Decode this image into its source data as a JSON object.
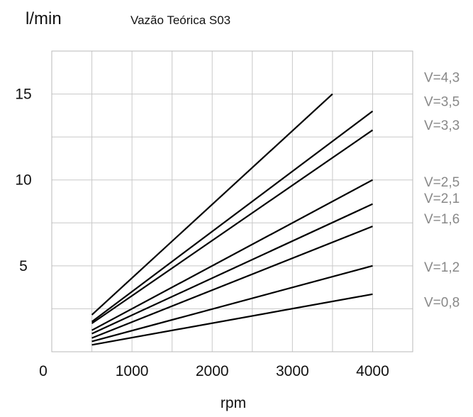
{
  "chart_data": {
    "type": "line",
    "title": "Vazão Teórica S03",
    "ylabel": "l/min",
    "xlabel": "rpm",
    "xlim": [
      0,
      4500
    ],
    "ylim": [
      0,
      17.5
    ],
    "x_ticks": [
      0,
      1000,
      2000,
      3000,
      4000
    ],
    "x_tick_labels": [
      "0",
      "1000",
      "2000",
      "3000",
      "4000"
    ],
    "y_ticks": [
      5,
      10,
      15
    ],
    "y_tick_labels": [
      "5",
      "10",
      "15"
    ],
    "grid": true,
    "series": [
      {
        "name": "V=4,3",
        "points": [
          [
            500,
            2.15
          ],
          [
            3500,
            15.0
          ]
        ]
      },
      {
        "name": "V=3,5",
        "points": [
          [
            500,
            1.75
          ],
          [
            4000,
            14.0
          ]
        ]
      },
      {
        "name": "V=3,3",
        "points": [
          [
            500,
            1.65
          ],
          [
            4000,
            12.9
          ]
        ]
      },
      {
        "name": "V=2,5",
        "points": [
          [
            500,
            1.25
          ],
          [
            4000,
            10.0
          ]
        ]
      },
      {
        "name": "V=2,1",
        "points": [
          [
            500,
            1.05
          ],
          [
            4000,
            8.6
          ]
        ]
      },
      {
        "name": "V=1,6",
        "points": [
          [
            500,
            0.8
          ],
          [
            4000,
            7.3
          ]
        ]
      },
      {
        "name": "V=1,2",
        "points": [
          [
            500,
            0.6
          ],
          [
            4000,
            5.0
          ]
        ]
      },
      {
        "name": "V=0,8",
        "points": [
          [
            500,
            0.4
          ],
          [
            4000,
            3.35
          ]
        ]
      }
    ],
    "series_label_values": [
      16.0,
      14.6,
      13.2,
      9.9,
      8.95,
      7.75,
      4.95,
      2.9
    ]
  }
}
